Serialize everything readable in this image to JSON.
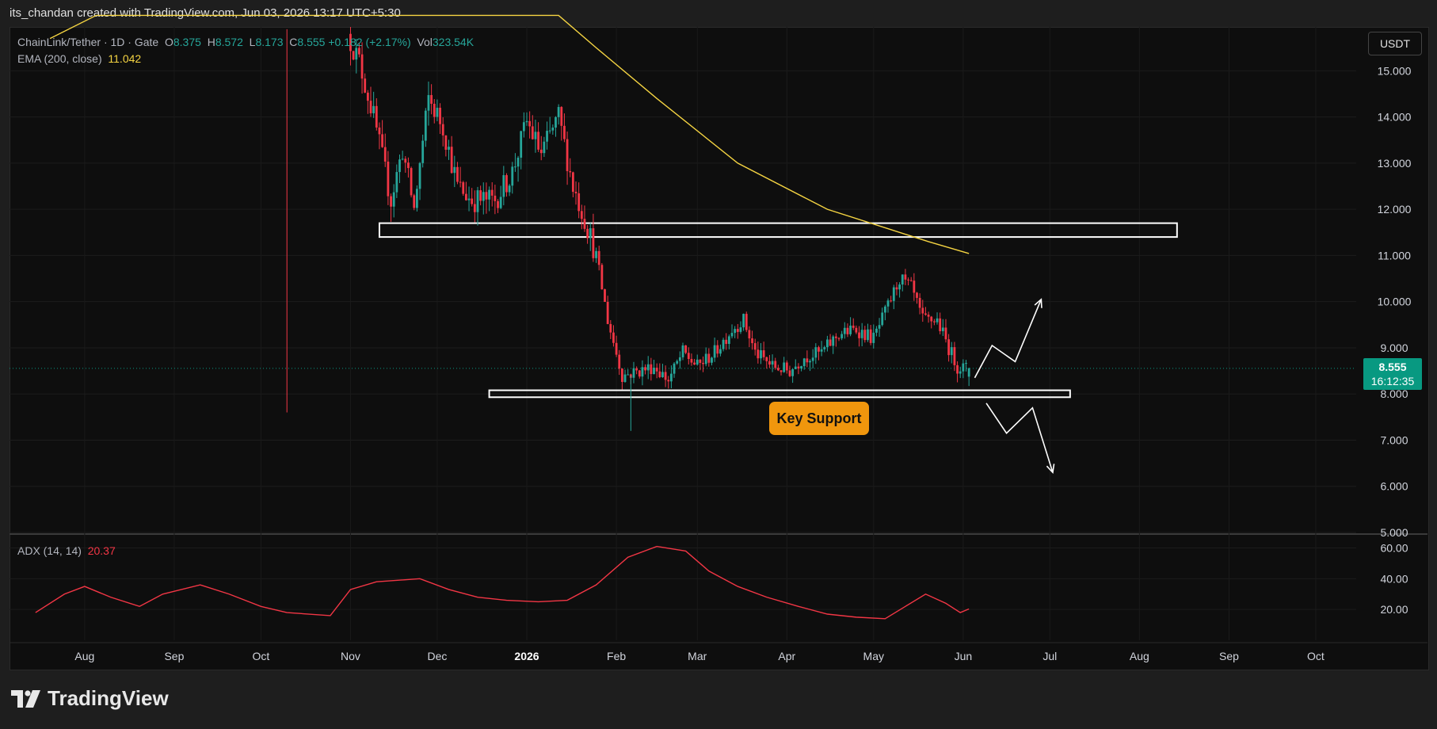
{
  "header": {
    "attribution": "its_chandan created with TradingView.com, Jun 03, 2026 13:17 UTC+5:30"
  },
  "legend": {
    "symbol": "ChainLink/Tether · 1D · Gate",
    "o_label": "O",
    "o_value": "8.375",
    "h_label": "H",
    "h_value": "8.572",
    "l_label": "L",
    "l_value": "8.173",
    "c_label": "C",
    "c_value": "8.555",
    "change": "+0.182 (+2.17%)",
    "vol_label": "Vol",
    "vol_value": "323.54K",
    "ema_label": "EMA (200, close)",
    "ema_value": "11.042",
    "adx_label": "ADX (14, 14)",
    "adx_value": "20.37"
  },
  "currency": "USDT",
  "price_tag": {
    "price": "8.555",
    "countdown": "16:12:35"
  },
  "annotation": {
    "label": "Key Support"
  },
  "brand": {
    "name": "TradingView"
  },
  "colors": {
    "up": "#26a69a",
    "down": "#f23645",
    "ema": "#f5d442",
    "adx": "#f23645",
    "annotation": "#f0960d",
    "background": "#0e0e0e"
  },
  "chart_data": {
    "type": "candlestick",
    "main_axis": {
      "ticks": [
        "5.000",
        "6.000",
        "7.000",
        "8.000",
        "9.000",
        "10.000",
        "11.000",
        "12.000",
        "13.000",
        "14.000",
        "15.000"
      ],
      "ylim": [
        5.0,
        15.95
      ]
    },
    "adx_axis": {
      "ticks": [
        "20.00",
        "40.00",
        "60.00"
      ],
      "ylim": [
        0,
        68
      ]
    },
    "x_axis": {
      "labels": [
        "Aug",
        "Sep",
        "Oct",
        "Nov",
        "Dec",
        "2026",
        "Feb",
        "Mar",
        "Apr",
        "May",
        "Jun",
        "Jul",
        "Aug",
        "Sep",
        "Oct"
      ],
      "bold": "2026"
    },
    "ohlc_anchors": [
      {
        "date": "2025-11-01",
        "price": 15.8
      },
      {
        "date": "2025-11-05",
        "price": 15.2
      },
      {
        "date": "2025-11-10",
        "price": 14.0
      },
      {
        "date": "2025-11-16",
        "price": 12.2
      },
      {
        "date": "2025-11-20",
        "price": 13.3
      },
      {
        "date": "2025-11-24",
        "price": 12.0
      },
      {
        "date": "2025-11-29",
        "price": 14.4
      },
      {
        "date": "2025-12-04",
        "price": 13.8
      },
      {
        "date": "2025-12-09",
        "price": 12.5
      },
      {
        "date": "2025-12-14",
        "price": 12.2
      },
      {
        "date": "2025-12-22",
        "price": 12.2
      },
      {
        "date": "2025-12-28",
        "price": 12.8
      },
      {
        "date": "2026-01-02",
        "price": 13.9
      },
      {
        "date": "2026-01-07",
        "price": 13.2
      },
      {
        "date": "2026-01-13",
        "price": 14.0
      },
      {
        "date": "2026-01-18",
        "price": 12.5
      },
      {
        "date": "2026-01-22",
        "price": 11.8
      },
      {
        "date": "2026-01-26",
        "price": 11.0
      },
      {
        "date": "2026-01-30",
        "price": 9.6
      },
      {
        "date": "2026-02-04",
        "price": 8.4
      },
      {
        "date": "2026-02-10",
        "price": 8.5
      },
      {
        "date": "2026-02-15",
        "price": 8.6
      },
      {
        "date": "2026-02-20",
        "price": 8.3
      },
      {
        "date": "2026-02-25",
        "price": 8.9
      },
      {
        "date": "2026-03-02",
        "price": 8.6
      },
      {
        "date": "2026-03-08",
        "price": 8.9
      },
      {
        "date": "2026-03-14",
        "price": 9.4
      },
      {
        "date": "2026-03-18",
        "price": 9.6
      },
      {
        "date": "2026-03-22",
        "price": 8.9
      },
      {
        "date": "2026-03-28",
        "price": 8.6
      },
      {
        "date": "2026-04-03",
        "price": 8.5
      },
      {
        "date": "2026-04-08",
        "price": 8.8
      },
      {
        "date": "2026-04-14",
        "price": 8.9
      },
      {
        "date": "2026-04-20",
        "price": 9.3
      },
      {
        "date": "2026-04-26",
        "price": 9.4
      },
      {
        "date": "2026-05-02",
        "price": 9.2
      },
      {
        "date": "2026-05-07",
        "price": 9.9
      },
      {
        "date": "2026-05-11",
        "price": 10.5
      },
      {
        "date": "2026-05-15",
        "price": 10.3
      },
      {
        "date": "2026-05-19",
        "price": 9.6
      },
      {
        "date": "2026-05-24",
        "price": 9.6
      },
      {
        "date": "2026-05-28",
        "price": 9.0
      },
      {
        "date": "2026-05-31",
        "price": 8.6
      },
      {
        "date": "2026-06-03",
        "price": 8.55
      }
    ],
    "notable_wicks": [
      {
        "date": "2025-10-10",
        "low": 7.6,
        "high": 15.9
      },
      {
        "date": "2026-02-06",
        "low": 7.2,
        "high": 8.4
      }
    ],
    "ema200": [
      {
        "date": "2025-07-20",
        "value": 15.7
      },
      {
        "date": "2025-08-05",
        "value": 16.4
      },
      {
        "date": "2026-01-12",
        "value": 16.2
      },
      {
        "date": "2026-01-25",
        "value": 15.5
      },
      {
        "date": "2026-02-15",
        "value": 14.4
      },
      {
        "date": "2026-03-15",
        "value": 13.0
      },
      {
        "date": "2026-04-15",
        "value": 12.0
      },
      {
        "date": "2026-05-05",
        "value": 11.6
      },
      {
        "date": "2026-05-20",
        "value": 11.3
      },
      {
        "date": "2026-06-03",
        "value": 11.042
      }
    ],
    "adx": [
      {
        "date": "2025-07-15",
        "value": 18
      },
      {
        "date": "2025-07-25",
        "value": 30
      },
      {
        "date": "2025-08-01",
        "value": 35
      },
      {
        "date": "2025-08-10",
        "value": 28
      },
      {
        "date": "2025-08-20",
        "value": 22
      },
      {
        "date": "2025-08-28",
        "value": 30
      },
      {
        "date": "2025-09-10",
        "value": 36
      },
      {
        "date": "2025-09-20",
        "value": 30
      },
      {
        "date": "2025-10-01",
        "value": 22
      },
      {
        "date": "2025-10-10",
        "value": 18
      },
      {
        "date": "2025-10-25",
        "value": 16
      },
      {
        "date": "2025-11-01",
        "value": 33
      },
      {
        "date": "2025-11-10",
        "value": 38
      },
      {
        "date": "2025-11-25",
        "value": 40
      },
      {
        "date": "2025-12-05",
        "value": 33
      },
      {
        "date": "2025-12-15",
        "value": 28
      },
      {
        "date": "2025-12-25",
        "value": 26
      },
      {
        "date": "2026-01-05",
        "value": 25
      },
      {
        "date": "2026-01-15",
        "value": 26
      },
      {
        "date": "2026-01-25",
        "value": 36
      },
      {
        "date": "2026-02-05",
        "value": 54
      },
      {
        "date": "2026-02-15",
        "value": 61
      },
      {
        "date": "2026-02-25",
        "value": 58
      },
      {
        "date": "2026-03-05",
        "value": 45
      },
      {
        "date": "2026-03-15",
        "value": 35
      },
      {
        "date": "2026-03-25",
        "value": 28
      },
      {
        "date": "2026-04-05",
        "value": 22
      },
      {
        "date": "2026-04-15",
        "value": 17
      },
      {
        "date": "2026-04-25",
        "value": 15
      },
      {
        "date": "2026-05-05",
        "value": 14
      },
      {
        "date": "2026-05-12",
        "value": 22
      },
      {
        "date": "2026-05-19",
        "value": 30
      },
      {
        "date": "2026-05-26",
        "value": 24
      },
      {
        "date": "2026-05-31",
        "value": 18
      },
      {
        "date": "2026-06-03",
        "value": 20.37
      }
    ],
    "zones": [
      {
        "name": "resistance-zone",
        "from": "2025-11-11",
        "to": "2026-08-14",
        "low": 11.4,
        "high": 11.7
      },
      {
        "name": "support-zone",
        "from": "2025-12-19",
        "to": "2026-07-08",
        "low": 7.93,
        "high": 8.08
      }
    ],
    "projections": [
      {
        "name": "bullish-projection",
        "points": [
          {
            "date": "2026-06-05",
            "value": 8.35
          },
          {
            "date": "2026-06-11",
            "value": 9.05
          },
          {
            "date": "2026-06-19",
            "value": 8.7
          },
          {
            "date": "2026-06-28",
            "value": 10.05
          }
        ]
      },
      {
        "name": "bearish-projection",
        "points": [
          {
            "date": "2026-06-09",
            "value": 7.8
          },
          {
            "date": "2026-06-16",
            "value": 7.15
          },
          {
            "date": "2026-06-25",
            "value": 7.7
          },
          {
            "date": "2026-07-02",
            "value": 6.3
          }
        ]
      }
    ],
    "current_price": 8.555
  }
}
